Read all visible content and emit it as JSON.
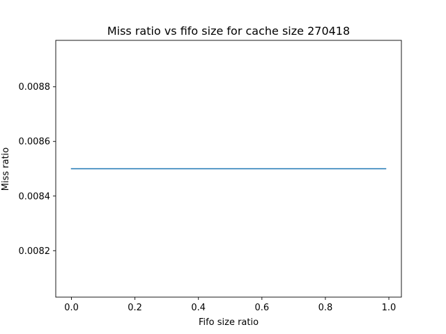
{
  "chart_data": {
    "type": "line",
    "title": "Miss ratio vs fifo size for cache size 270418",
    "xlabel": "Fifo size ratio",
    "ylabel": "Miss ratio",
    "xlim": [
      -0.0495,
      1.0395
    ],
    "ylim": [
      0.00803,
      0.00897
    ],
    "xticks": [
      0.0,
      0.2,
      0.4,
      0.6,
      0.8,
      1.0
    ],
    "xtick_labels": [
      "0.0",
      "0.2",
      "0.4",
      "0.6",
      "0.8",
      "1.0"
    ],
    "yticks": [
      0.0082,
      0.0084,
      0.0086,
      0.0088
    ],
    "ytick_labels": [
      "0.0082",
      "0.0084",
      "0.0086",
      "0.0088"
    ],
    "grid": false,
    "series": [
      {
        "color": "#1f77b4",
        "x": [
          0.0,
          0.99
        ],
        "y": [
          0.0085,
          0.0085
        ]
      }
    ]
  }
}
